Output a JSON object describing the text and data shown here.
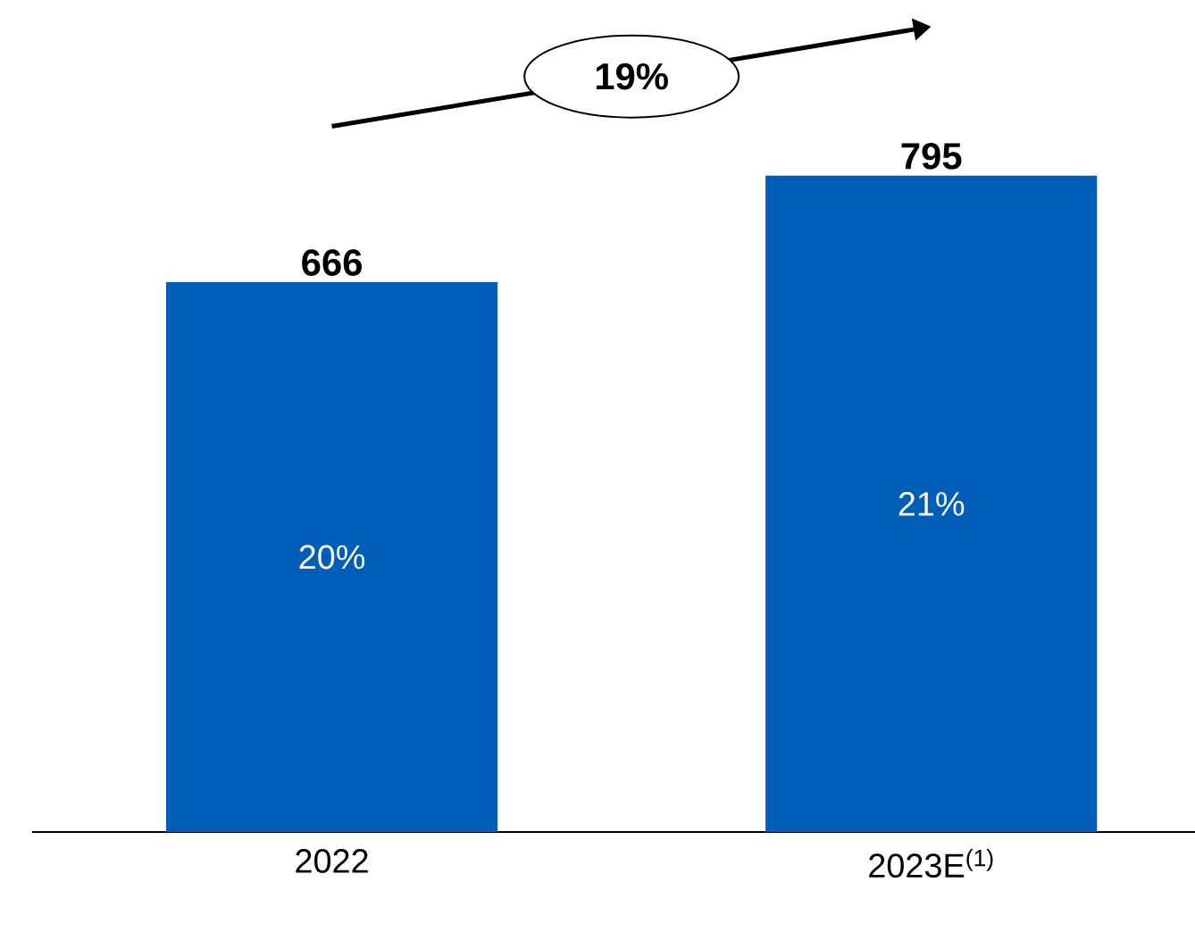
{
  "chart_data": {
    "type": "bar",
    "categories": [
      "2022",
      "2023E$^{(1)}$"
    ],
    "values": [
      666,
      795
    ],
    "color": "#005eb8",
    "data_labels": true,
    "annotations": [
      "20%",
      "21%",
      "19%"
    ]
  }
}
